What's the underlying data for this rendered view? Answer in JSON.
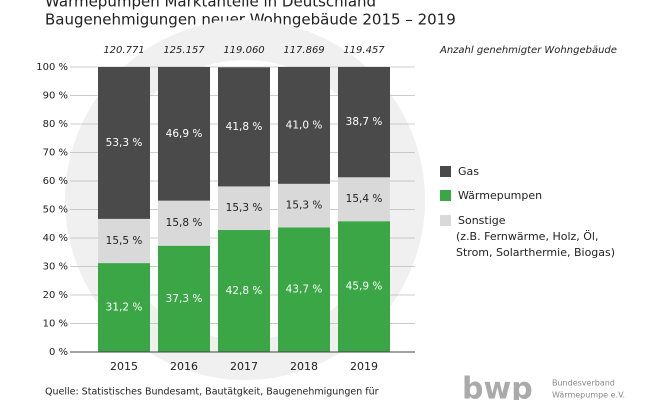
{
  "chart_data": {
    "type": "stacked_bar",
    "title": "Wärmepumpen Marktanteile in Deutschland",
    "subtitle": "Baugenehmigungen neuer Wohngebäude 2015 – 2019",
    "totals_label": "Anzahl genehmigter Wohngebäude",
    "totals": [
      {
        "value": 120771,
        "label": "120.771"
      },
      {
        "value": 125157,
        "label": "125.157"
      },
      {
        "value": 119060,
        "label": "119.060"
      },
      {
        "value": 117869,
        "label": "117.869"
      },
      {
        "value": 119457,
        "label": "119.457"
      }
    ],
    "categories": [
      "2015",
      "2016",
      "2017",
      "2018",
      "2019"
    ],
    "series": [
      {
        "name": "Wärmepumpen",
        "color": "#3aa646",
        "values": [
          31.2,
          37.3,
          42.8,
          43.7,
          45.9
        ],
        "value_labels": [
          "31,2 %",
          "37,3 %",
          "42,8 %",
          "43,7 %",
          "45,9 %"
        ]
      },
      {
        "name": "Sonstige",
        "color": "#d9d9d9",
        "values": [
          15.5,
          15.8,
          15.3,
          15.3,
          15.4
        ],
        "value_labels": [
          "15,5 %",
          "15,8 %",
          "15,3 %",
          "15,3 %",
          "15,4 %"
        ]
      },
      {
        "name": "Gas",
        "color": "#4a4a4a",
        "values": [
          53.3,
          46.9,
          41.8,
          41.0,
          38.7
        ],
        "value_labels": [
          "53,3 %",
          "46,9 %",
          "41,8 %",
          "41,0 %",
          "38,7 %"
        ]
      }
    ],
    "legend_order": [
      "Gas",
      "Wärmepumpen",
      "Sonstige"
    ],
    "legend_note": "(z.B. Fernwärme, Holz, Öl, Strom, Solarthermie, Biogas)",
    "ylim": [
      0,
      100
    ],
    "yticks": [
      {
        "value": 0,
        "label": "0 %"
      },
      {
        "value": 10,
        "label": "10 %"
      },
      {
        "value": 20,
        "label": "20 %"
      },
      {
        "value": 30,
        "label": "30 %"
      },
      {
        "value": 40,
        "label": "40 %"
      },
      {
        "value": 50,
        "label": "50 %"
      },
      {
        "value": 60,
        "label": "60 %"
      },
      {
        "value": 70,
        "label": "70 %"
      },
      {
        "value": 80,
        "label": "80 %"
      },
      {
        "value": 90,
        "label": "90 %"
      },
      {
        "value": 100,
        "label": "100 %"
      }
    ],
    "grid": true,
    "source": "Quelle: Statistisches Bundesamt, Bautätgkeit, Baugenehmigungen für",
    "logo": "bwp",
    "logo_text": [
      "Bundesverband",
      "Wärmepumpe e.V."
    ]
  }
}
